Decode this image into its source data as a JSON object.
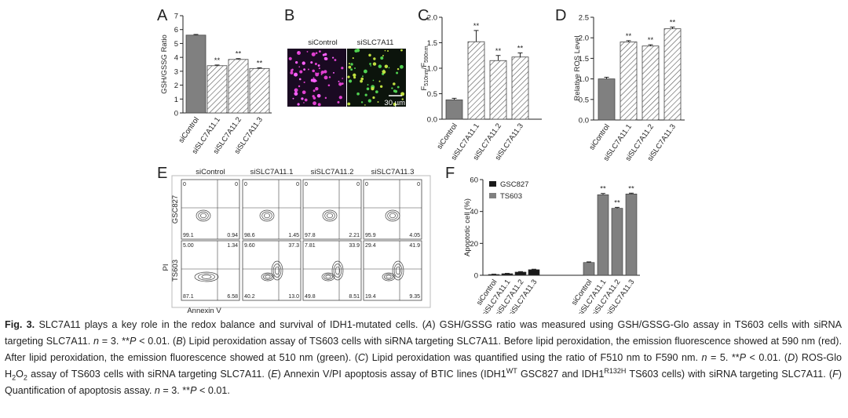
{
  "chart_data": [
    {
      "type": "bar",
      "panel": "A",
      "ylabel": "GSH/GSSG Ratio",
      "categories": [
        "siControl",
        "siSLC7A11.1",
        "siSLC7A11.2",
        "siSLC7A11.3"
      ],
      "values": [
        5.6,
        3.4,
        3.85,
        3.2
      ],
      "errors": [
        0.05,
        0.05,
        0.06,
        0.05
      ],
      "significance": [
        null,
        "**",
        "**",
        "**"
      ],
      "fills": [
        "solid",
        "hatched",
        "hatched",
        "hatched"
      ],
      "color": "#808080",
      "ylim": [
        0,
        7
      ],
      "yticks": [
        0,
        1,
        2,
        3,
        4,
        5,
        6,
        7
      ]
    },
    {
      "type": "bar",
      "panel": "C",
      "ylabel": [
        "F",
        "510nm",
        "/F",
        "590nm"
      ],
      "categories": [
        "siControl",
        "siSLC7A11.1",
        "siSLC7A11.2",
        "siSLC7A11.3"
      ],
      "values": [
        0.38,
        1.52,
        1.15,
        1.22
      ],
      "errors": [
        0.03,
        0.22,
        0.1,
        0.08
      ],
      "significance": [
        null,
        "**",
        "**",
        "**"
      ],
      "fills": [
        "solid",
        "hatched",
        "hatched",
        "hatched"
      ],
      "color": "#808080",
      "ylim": [
        0,
        2
      ],
      "yticks": [
        {
          "value": 0,
          "label": "0.0"
        },
        0.5,
        {
          "value": 1,
          "label": "1.0"
        },
        1.5,
        {
          "value": 2,
          "label": "2.0"
        }
      ]
    },
    {
      "type": "bar",
      "panel": "D",
      "ylabel": "Relative ROS Level",
      "categories": [
        "siControl",
        "siSLC7A11.1",
        "siSLC7A11.2",
        "siSLC7A11.3"
      ],
      "values": [
        1.0,
        1.9,
        1.8,
        2.22
      ],
      "errors": [
        0.04,
        0.03,
        0.03,
        0.04
      ],
      "significance": [
        null,
        "**",
        "**",
        "**"
      ],
      "fills": [
        "solid",
        "hatched",
        "hatched",
        "hatched"
      ],
      "color": "#808080",
      "ylim": [
        0,
        2.5
      ],
      "yticks": [
        {
          "value": 0,
          "label": "0.0"
        },
        0.5,
        {
          "value": 1,
          "label": "1.0"
        },
        1.5,
        {
          "value": 2,
          "label": "2.0"
        },
        2.5
      ]
    },
    {
      "type": "grouped_bar",
      "panel": "F",
      "ylabel": "Apoptotic cell (%)",
      "legend": "upper left",
      "categories": [
        "siControl",
        "siSLC7A11.1",
        "siSLC7A11.2",
        "siSLC7A11.3",
        "siControl",
        "siSLC7A11.1",
        "siSLC7A11.2",
        "siSLC7A11.3"
      ],
      "series": [
        {
          "name": "GSC827",
          "color": "#1a1a1a",
          "values": [
            0.5,
            1,
            2,
            3.5,
            null,
            null,
            null,
            null
          ],
          "errors": [
            0.2,
            0.2,
            0.3,
            0.3,
            null,
            null,
            null,
            null
          ]
        },
        {
          "name": "TS603",
          "color": "#808080",
          "values": [
            null,
            null,
            null,
            null,
            8,
            50.5,
            42,
            51
          ],
          "errors": [
            null,
            null,
            null,
            null,
            0.4,
            0.8,
            0.6,
            0.5
          ]
        }
      ],
      "significance": [
        null,
        null,
        null,
        null,
        null,
        "**",
        "**",
        "**"
      ],
      "ylim": [
        0,
        60
      ],
      "yticks": [
        0,
        20,
        40,
        60
      ]
    }
  ],
  "panel_b": {
    "letter": "B",
    "labels": [
      "siControl",
      "siSLC7A11"
    ],
    "scale_bar": "30 µm"
  },
  "panel_e": {
    "letter": "E",
    "columns": [
      "siControl",
      "siSLC7A11.1",
      "siSLC7A11.2",
      "siSLC7A11.3"
    ],
    "rows": [
      "GSC827",
      "TS603"
    ],
    "xlabel": "Annexin V",
    "ylabel": "PI",
    "quadrants": [
      [
        [
          "0",
          "0",
          "99.1",
          "0.94"
        ],
        [
          "0",
          "0",
          "98.6",
          "1.45"
        ],
        [
          "0",
          "0",
          "97.8",
          "2.21"
        ],
        [
          "0",
          "0",
          "95.9",
          "4.05"
        ]
      ],
      [
        [
          "5.00",
          "1.34",
          "87.1",
          "6.58"
        ],
        [
          "9.60",
          "37.3",
          "40.2",
          "13.0"
        ],
        [
          "7.81",
          "33.9",
          "49.8",
          "8.51"
        ],
        [
          "29.4",
          "41.9",
          "19.4",
          "9.35"
        ]
      ]
    ]
  },
  "caption": [
    "Fig. 3.",
    " SLC7A11 plays a key role in the redox balance and survival of IDH1-mutated cells. (",
    "A",
    ") GSH/GSSG ratio was measured using GSH/GSSG-Glo assay in TS603 cells with siRNA targeting SLC7A11. ",
    "n",
    " = 3. **",
    "P",
    " < 0.01. (",
    "B",
    ") Lipid peroxidation assay of TS603 cells with siRNA targeting SLC7A11. Before lipid peroxidation, the emission fluorescence showed at 590 nm (red). After lipid peroxidation, the emission fluorescence showed at 510 nm (green). (",
    "C",
    ") Lipid peroxidation was quantified using the ratio of F510 nm to F590 nm. ",
    "n",
    " = 5. **",
    "P",
    " < 0.01. (",
    "D",
    ") ROS-Glo H",
    "2",
    "O",
    "2",
    " assay of TS603 cells with siRNA targeting SLC7A11. (",
    "E",
    ") Annexin V/PI apoptosis assay of BTIC lines (IDH1",
    "WT",
    " GSC827 and IDH1",
    "R132H",
    " TS603 cells) with siRNA targeting SLC7A11. (",
    "F",
    ") Quantification of apoptosis assay. ",
    "n",
    " = 3. **",
    "P",
    " < 0.01."
  ]
}
